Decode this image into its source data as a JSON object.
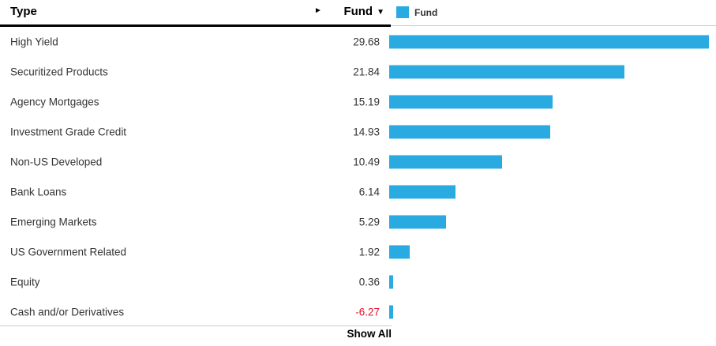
{
  "header": {
    "type_label": "Type",
    "fund_label": "Fund",
    "sort_descending_icon": "▼",
    "expand_icon": "►"
  },
  "legend": {
    "label": "Fund",
    "swatch_color": "#29abe2"
  },
  "footer": {
    "show_all_label": "Show All"
  },
  "colors": {
    "bar": "#29abe2",
    "negative_text": "#e8112d",
    "row_text": "#333333"
  },
  "chart_data": {
    "type": "bar",
    "orientation": "horizontal",
    "title": "",
    "series_name": "Fund",
    "legend_position": "top-right",
    "grid": false,
    "xlim": [
      0,
      30
    ],
    "bar_color": "#29abe2",
    "negative_value_color": "#e8112d",
    "categories": [
      "High Yield",
      "Securitized Products",
      "Agency Mortgages",
      "Investment Grade Credit",
      "Non-US Developed",
      "Bank Loans",
      "Emerging Markets",
      "US Government Related",
      "Equity",
      "Cash and/or Derivatives"
    ],
    "values": [
      29.68,
      21.84,
      15.19,
      14.93,
      10.49,
      6.14,
      5.29,
      1.92,
      0.36,
      -6.27
    ]
  }
}
